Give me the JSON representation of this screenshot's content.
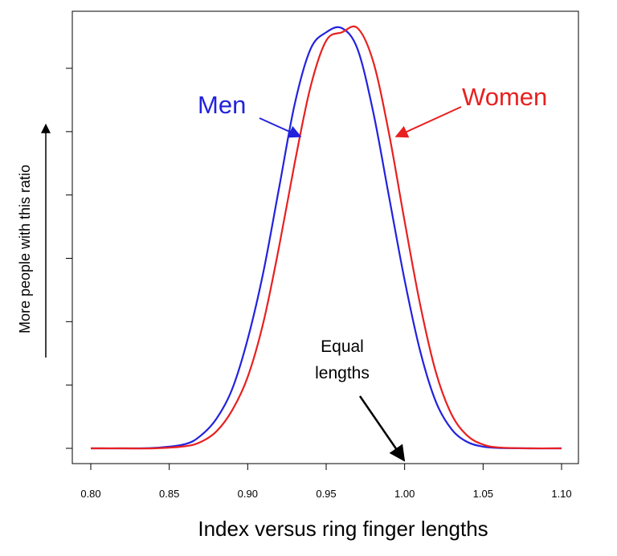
{
  "chart_data": {
    "type": "line",
    "xlabel": "Index versus ring finger lengths",
    "ylabel": "More people with this ratio",
    "xlim": [
      0.8,
      1.1
    ],
    "x_ticks": [
      "0.80",
      "0.85",
      "0.90",
      "0.95",
      "1.00",
      "1.05",
      "1.10"
    ],
    "y_tick_count": 7,
    "series": [
      {
        "name": "Men",
        "color": "#2222dd",
        "x": [
          0.8,
          0.82,
          0.84,
          0.86,
          0.87,
          0.88,
          0.89,
          0.9,
          0.91,
          0.92,
          0.93,
          0.94,
          0.95,
          0.96,
          0.97,
          0.98,
          0.99,
          1.0,
          1.01,
          1.02,
          1.03,
          1.04,
          1.05,
          1.06,
          1.08,
          1.1
        ],
        "y": [
          0.0,
          0.0,
          0.001,
          0.01,
          0.03,
          0.07,
          0.14,
          0.26,
          0.42,
          0.62,
          0.82,
          0.95,
          0.99,
          1.0,
          0.95,
          0.8,
          0.6,
          0.4,
          0.23,
          0.11,
          0.045,
          0.015,
          0.004,
          0.001,
          0.0,
          0.0
        ]
      },
      {
        "name": "Women",
        "color": "#e82020",
        "x": [
          0.8,
          0.82,
          0.84,
          0.86,
          0.87,
          0.88,
          0.89,
          0.9,
          0.91,
          0.92,
          0.93,
          0.94,
          0.95,
          0.96,
          0.97,
          0.98,
          0.99,
          1.0,
          1.01,
          1.02,
          1.03,
          1.04,
          1.05,
          1.06,
          1.08,
          1.1
        ],
        "y": [
          0.0,
          0.0,
          0.0,
          0.005,
          0.015,
          0.04,
          0.09,
          0.17,
          0.3,
          0.48,
          0.68,
          0.86,
          0.97,
          0.99,
          1.0,
          0.92,
          0.75,
          0.54,
          0.34,
          0.18,
          0.08,
          0.03,
          0.009,
          0.002,
          0.0,
          0.0
        ]
      }
    ],
    "annotations": [
      {
        "text": "Men",
        "color": "#2222dd"
      },
      {
        "text": "Women",
        "color": "#e82020"
      },
      {
        "text_lines": [
          "Equal",
          "lengths"
        ],
        "color": "#000000",
        "points_to_x": 1.0
      }
    ]
  }
}
